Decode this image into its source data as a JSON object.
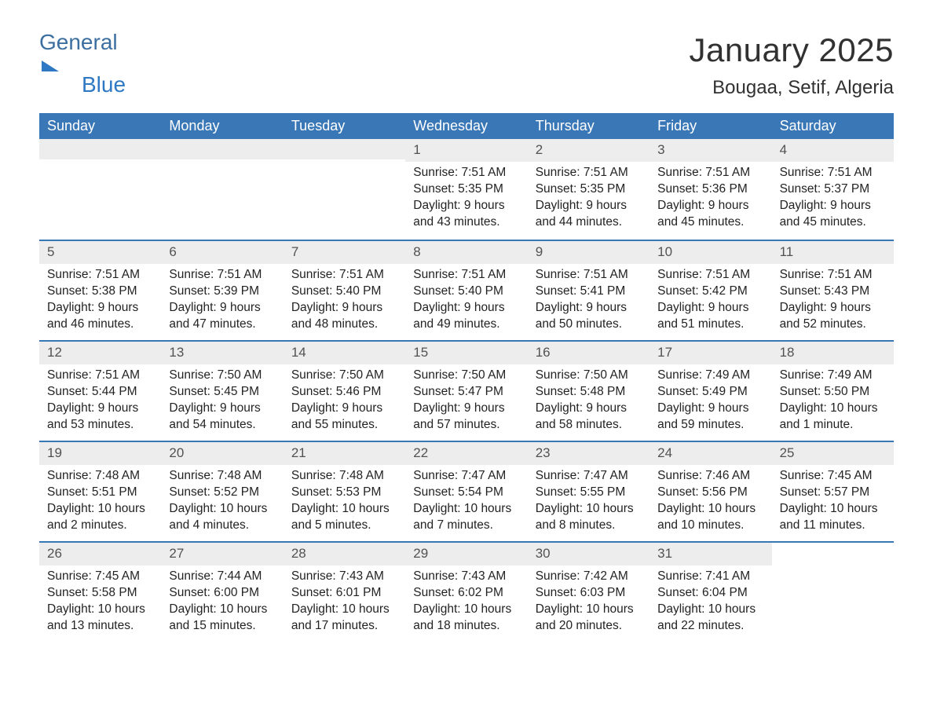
{
  "logo": {
    "line1": "General",
    "line2": "Blue"
  },
  "title": "January 2025",
  "location": "Bougaa, Setif, Algeria",
  "colors": {
    "header_bg": "#3a77b7",
    "header_text": "#ffffff",
    "daynum_bg": "#ededed",
    "daynum_text": "#525252",
    "body_text": "#232323",
    "week_border": "#3a77b7",
    "logo_gray": "#3b6fa0",
    "logo_blue": "#2f78c4"
  },
  "day_names": [
    "Sunday",
    "Monday",
    "Tuesday",
    "Wednesday",
    "Thursday",
    "Friday",
    "Saturday"
  ],
  "weeks": [
    [
      {
        "blank": true
      },
      {
        "blank": true
      },
      {
        "blank": true
      },
      {
        "day": "1",
        "sunrise": "Sunrise: 7:51 AM",
        "sunset": "Sunset: 5:35 PM",
        "daylight1": "Daylight: 9 hours",
        "daylight2": "and 43 minutes."
      },
      {
        "day": "2",
        "sunrise": "Sunrise: 7:51 AM",
        "sunset": "Sunset: 5:35 PM",
        "daylight1": "Daylight: 9 hours",
        "daylight2": "and 44 minutes."
      },
      {
        "day": "3",
        "sunrise": "Sunrise: 7:51 AM",
        "sunset": "Sunset: 5:36 PM",
        "daylight1": "Daylight: 9 hours",
        "daylight2": "and 45 minutes."
      },
      {
        "day": "4",
        "sunrise": "Sunrise: 7:51 AM",
        "sunset": "Sunset: 5:37 PM",
        "daylight1": "Daylight: 9 hours",
        "daylight2": "and 45 minutes."
      }
    ],
    [
      {
        "day": "5",
        "sunrise": "Sunrise: 7:51 AM",
        "sunset": "Sunset: 5:38 PM",
        "daylight1": "Daylight: 9 hours",
        "daylight2": "and 46 minutes."
      },
      {
        "day": "6",
        "sunrise": "Sunrise: 7:51 AM",
        "sunset": "Sunset: 5:39 PM",
        "daylight1": "Daylight: 9 hours",
        "daylight2": "and 47 minutes."
      },
      {
        "day": "7",
        "sunrise": "Sunrise: 7:51 AM",
        "sunset": "Sunset: 5:40 PM",
        "daylight1": "Daylight: 9 hours",
        "daylight2": "and 48 minutes."
      },
      {
        "day": "8",
        "sunrise": "Sunrise: 7:51 AM",
        "sunset": "Sunset: 5:40 PM",
        "daylight1": "Daylight: 9 hours",
        "daylight2": "and 49 minutes."
      },
      {
        "day": "9",
        "sunrise": "Sunrise: 7:51 AM",
        "sunset": "Sunset: 5:41 PM",
        "daylight1": "Daylight: 9 hours",
        "daylight2": "and 50 minutes."
      },
      {
        "day": "10",
        "sunrise": "Sunrise: 7:51 AM",
        "sunset": "Sunset: 5:42 PM",
        "daylight1": "Daylight: 9 hours",
        "daylight2": "and 51 minutes."
      },
      {
        "day": "11",
        "sunrise": "Sunrise: 7:51 AM",
        "sunset": "Sunset: 5:43 PM",
        "daylight1": "Daylight: 9 hours",
        "daylight2": "and 52 minutes."
      }
    ],
    [
      {
        "day": "12",
        "sunrise": "Sunrise: 7:51 AM",
        "sunset": "Sunset: 5:44 PM",
        "daylight1": "Daylight: 9 hours",
        "daylight2": "and 53 minutes."
      },
      {
        "day": "13",
        "sunrise": "Sunrise: 7:50 AM",
        "sunset": "Sunset: 5:45 PM",
        "daylight1": "Daylight: 9 hours",
        "daylight2": "and 54 minutes."
      },
      {
        "day": "14",
        "sunrise": "Sunrise: 7:50 AM",
        "sunset": "Sunset: 5:46 PM",
        "daylight1": "Daylight: 9 hours",
        "daylight2": "and 55 minutes."
      },
      {
        "day": "15",
        "sunrise": "Sunrise: 7:50 AM",
        "sunset": "Sunset: 5:47 PM",
        "daylight1": "Daylight: 9 hours",
        "daylight2": "and 57 minutes."
      },
      {
        "day": "16",
        "sunrise": "Sunrise: 7:50 AM",
        "sunset": "Sunset: 5:48 PM",
        "daylight1": "Daylight: 9 hours",
        "daylight2": "and 58 minutes."
      },
      {
        "day": "17",
        "sunrise": "Sunrise: 7:49 AM",
        "sunset": "Sunset: 5:49 PM",
        "daylight1": "Daylight: 9 hours",
        "daylight2": "and 59 minutes."
      },
      {
        "day": "18",
        "sunrise": "Sunrise: 7:49 AM",
        "sunset": "Sunset: 5:50 PM",
        "daylight1": "Daylight: 10 hours",
        "daylight2": "and 1 minute."
      }
    ],
    [
      {
        "day": "19",
        "sunrise": "Sunrise: 7:48 AM",
        "sunset": "Sunset: 5:51 PM",
        "daylight1": "Daylight: 10 hours",
        "daylight2": "and 2 minutes."
      },
      {
        "day": "20",
        "sunrise": "Sunrise: 7:48 AM",
        "sunset": "Sunset: 5:52 PM",
        "daylight1": "Daylight: 10 hours",
        "daylight2": "and 4 minutes."
      },
      {
        "day": "21",
        "sunrise": "Sunrise: 7:48 AM",
        "sunset": "Sunset: 5:53 PM",
        "daylight1": "Daylight: 10 hours",
        "daylight2": "and 5 minutes."
      },
      {
        "day": "22",
        "sunrise": "Sunrise: 7:47 AM",
        "sunset": "Sunset: 5:54 PM",
        "daylight1": "Daylight: 10 hours",
        "daylight2": "and 7 minutes."
      },
      {
        "day": "23",
        "sunrise": "Sunrise: 7:47 AM",
        "sunset": "Sunset: 5:55 PM",
        "daylight1": "Daylight: 10 hours",
        "daylight2": "and 8 minutes."
      },
      {
        "day": "24",
        "sunrise": "Sunrise: 7:46 AM",
        "sunset": "Sunset: 5:56 PM",
        "daylight1": "Daylight: 10 hours",
        "daylight2": "and 10 minutes."
      },
      {
        "day": "25",
        "sunrise": "Sunrise: 7:45 AM",
        "sunset": "Sunset: 5:57 PM",
        "daylight1": "Daylight: 10 hours",
        "daylight2": "and 11 minutes."
      }
    ],
    [
      {
        "day": "26",
        "sunrise": "Sunrise: 7:45 AM",
        "sunset": "Sunset: 5:58 PM",
        "daylight1": "Daylight: 10 hours",
        "daylight2": "and 13 minutes."
      },
      {
        "day": "27",
        "sunrise": "Sunrise: 7:44 AM",
        "sunset": "Sunset: 6:00 PM",
        "daylight1": "Daylight: 10 hours",
        "daylight2": "and 15 minutes."
      },
      {
        "day": "28",
        "sunrise": "Sunrise: 7:43 AM",
        "sunset": "Sunset: 6:01 PM",
        "daylight1": "Daylight: 10 hours",
        "daylight2": "and 17 minutes."
      },
      {
        "day": "29",
        "sunrise": "Sunrise: 7:43 AM",
        "sunset": "Sunset: 6:02 PM",
        "daylight1": "Daylight: 10 hours",
        "daylight2": "and 18 minutes."
      },
      {
        "day": "30",
        "sunrise": "Sunrise: 7:42 AM",
        "sunset": "Sunset: 6:03 PM",
        "daylight1": "Daylight: 10 hours",
        "daylight2": "and 20 minutes."
      },
      {
        "day": "31",
        "sunrise": "Sunrise: 7:41 AM",
        "sunset": "Sunset: 6:04 PM",
        "daylight1": "Daylight: 10 hours",
        "daylight2": "and 22 minutes."
      },
      {
        "blank": true,
        "nobar": true
      }
    ]
  ]
}
